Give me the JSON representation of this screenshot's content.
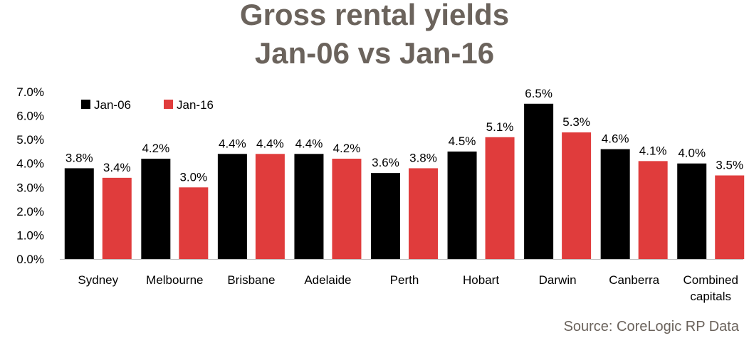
{
  "title_line1": "Gross rental yields",
  "title_line2": "Jan-06 vs Jan-16",
  "source": "Source: CoreLogic RP Data",
  "chart_data": {
    "type": "bar",
    "categories": [
      "Sydney",
      "Melbourne",
      "Brisbane",
      "Adelaide",
      "Perth",
      "Hobart",
      "Darwin",
      "Canberra",
      "Combined capitals"
    ],
    "series": [
      {
        "name": "Jan-06",
        "color": "#000000",
        "values": [
          3.8,
          4.2,
          4.4,
          4.4,
          3.6,
          4.5,
          6.5,
          4.6,
          4.0
        ],
        "labels": [
          "3.8%",
          "4.2%",
          "4.4%",
          "4.4%",
          "3.6%",
          "4.5%",
          "6.5%",
          "4.6%",
          "4.0%"
        ]
      },
      {
        "name": "Jan-16",
        "color": "#e03c3c",
        "values": [
          3.4,
          3.0,
          4.4,
          4.2,
          3.8,
          5.1,
          5.3,
          4.1,
          3.5
        ],
        "labels": [
          "3.4%",
          "3.0%",
          "4.4%",
          "4.2%",
          "3.8%",
          "5.1%",
          "5.3%",
          "4.1%",
          "3.5%"
        ]
      }
    ],
    "ylim": [
      0,
      7
    ],
    "yticks": [
      "0.0%",
      "1.0%",
      "2.0%",
      "3.0%",
      "4.0%",
      "5.0%",
      "6.0%",
      "7.0%"
    ],
    "legend_position": "top-left",
    "grid": false,
    "xlabel": "",
    "ylabel": ""
  }
}
